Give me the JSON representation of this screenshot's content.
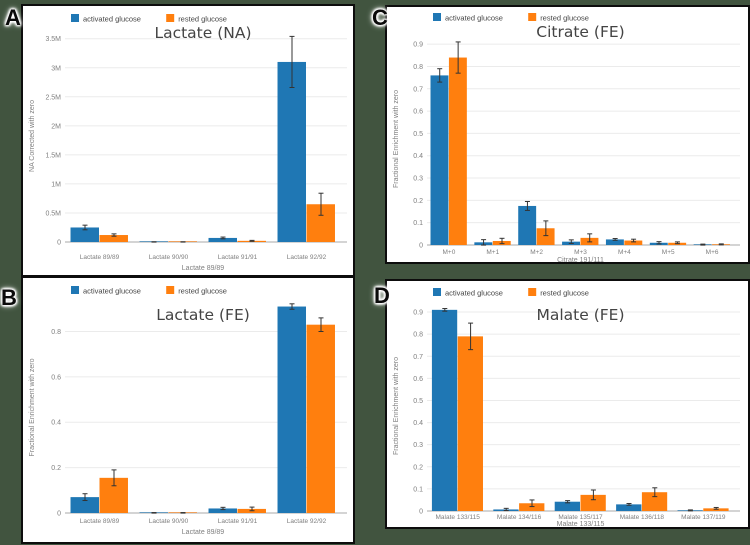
{
  "page": {
    "background_color": "#41543f",
    "panel_border_color": "#0d0d0d",
    "series_colors": {
      "activated": "#1f77b4",
      "rested": "#ff7f0e"
    },
    "error_bar_color": "#333333"
  },
  "legend": {
    "items": [
      {
        "label": "activated glucose",
        "color": "#1f77b4"
      },
      {
        "label": "rested glucose",
        "color": "#ff7f0e"
      }
    ]
  },
  "chart_data": [
    {
      "panel_label": "A",
      "type": "bar",
      "title": "Lactate (NA)",
      "xlabel": "Lactate 89/89",
      "ylabel": "NA Corrected with zero",
      "categories": [
        "Lactate 89/89",
        "Lactate 90/90",
        "Lactate 91/91",
        "Lactate 92/92"
      ],
      "series": [
        {
          "name": "activated glucose",
          "color": "#1f77b4",
          "values": [
            0.25,
            0.002,
            0.07,
            3.1
          ],
          "errors": [
            0.04,
            0.002,
            0.015,
            0.44
          ]
        },
        {
          "name": "rested glucose",
          "color": "#ff7f0e",
          "values": [
            0.12,
            0.002,
            0.02,
            0.65
          ],
          "errors": [
            0.02,
            0.001,
            0.008,
            0.19
          ]
        }
      ],
      "ylim": [
        0,
        3.65
      ],
      "yticks": {
        "values": [
          0,
          0.5,
          1,
          1.5,
          2,
          2.5,
          3,
          3.5
        ],
        "labels": [
          "0",
          "0.5M",
          "1M",
          "1.5M",
          "2M",
          "2.5M",
          "3M",
          "3.5M"
        ]
      },
      "grid": true,
      "legend_position": "top-left"
    },
    {
      "panel_label": "B",
      "type": "bar",
      "title": "Lactate (FE)",
      "xlabel": "Lactate 89/89",
      "ylabel": "Fractional Enrichment with zero",
      "categories": [
        "Lactate 89/89",
        "Lactate 90/90",
        "Lactate 91/91",
        "Lactate 92/92"
      ],
      "series": [
        {
          "name": "activated glucose",
          "color": "#1f77b4",
          "values": [
            0.07,
            0.001,
            0.02,
            0.91
          ],
          "errors": [
            0.015,
            0.001,
            0.005,
            0.012
          ]
        },
        {
          "name": "rested glucose",
          "color": "#ff7f0e",
          "values": [
            0.155,
            0.001,
            0.018,
            0.83
          ],
          "errors": [
            0.035,
            0.001,
            0.008,
            0.03
          ]
        }
      ],
      "ylim": [
        0,
        0.93
      ],
      "yticks": {
        "values": [
          0,
          0.2,
          0.4,
          0.6,
          0.8
        ],
        "labels": [
          "0",
          "0.2",
          "0.4",
          "0.6",
          "0.8"
        ]
      },
      "grid": true,
      "legend_position": "top-left"
    },
    {
      "panel_label": "C",
      "type": "bar",
      "title": "Citrate (FE)",
      "xlabel": "Citrate 191/111",
      "ylabel": "Fractional Enrichment with zero",
      "categories": [
        "M+0",
        "M+1",
        "M+2",
        "M+3",
        "M+4",
        "M+5",
        "M+6"
      ],
      "series": [
        {
          "name": "activated glucose",
          "color": "#1f77b4",
          "values": [
            0.76,
            0.012,
            0.175,
            0.015,
            0.025,
            0.01,
            0.002
          ],
          "errors": [
            0.03,
            0.012,
            0.02,
            0.008,
            0.004,
            0.005,
            0.002
          ]
        },
        {
          "name": "rested glucose",
          "color": "#ff7f0e",
          "values": [
            0.84,
            0.018,
            0.075,
            0.032,
            0.02,
            0.01,
            0.003
          ],
          "errors": [
            0.07,
            0.012,
            0.033,
            0.018,
            0.006,
            0.004,
            0.002
          ]
        }
      ],
      "ylim": [
        0,
        0.95
      ],
      "yticks": {
        "values": [
          0,
          0.1,
          0.2,
          0.3,
          0.4,
          0.5,
          0.6,
          0.7,
          0.8,
          0.9
        ],
        "labels": [
          "0",
          "0.1",
          "0.2",
          "0.3",
          "0.4",
          "0.5",
          "0.6",
          "0.7",
          "0.8",
          "0.9"
        ]
      },
      "grid": true,
      "legend_position": "top-left"
    },
    {
      "panel_label": "D",
      "type": "bar",
      "title": "Malate (FE)",
      "xlabel": "Malate 133/115",
      "ylabel": "Fractional Enrichment with zero",
      "categories": [
        "Malate 133/115",
        "Malate 134/116",
        "Malate 135/117",
        "Malate 136/118",
        "Malate 137/119"
      ],
      "series": [
        {
          "name": "activated glucose",
          "color": "#1f77b4",
          "values": [
            0.91,
            0.007,
            0.042,
            0.03,
            0.003
          ],
          "errors": [
            0.006,
            0.005,
            0.005,
            0.004,
            0.002
          ]
        },
        {
          "name": "rested glucose",
          "color": "#ff7f0e",
          "values": [
            0.79,
            0.035,
            0.073,
            0.085,
            0.012
          ],
          "errors": [
            0.06,
            0.015,
            0.022,
            0.02,
            0.004
          ]
        }
      ],
      "ylim": [
        0,
        0.95
      ],
      "yticks": {
        "values": [
          0,
          0.1,
          0.2,
          0.3,
          0.4,
          0.5,
          0.6,
          0.7,
          0.8,
          0.9
        ],
        "labels": [
          "0",
          "0.1",
          "0.2",
          "0.3",
          "0.4",
          "0.5",
          "0.6",
          "0.7",
          "0.8",
          "0.9"
        ]
      },
      "grid": true,
      "legend_position": "top-left"
    }
  ]
}
